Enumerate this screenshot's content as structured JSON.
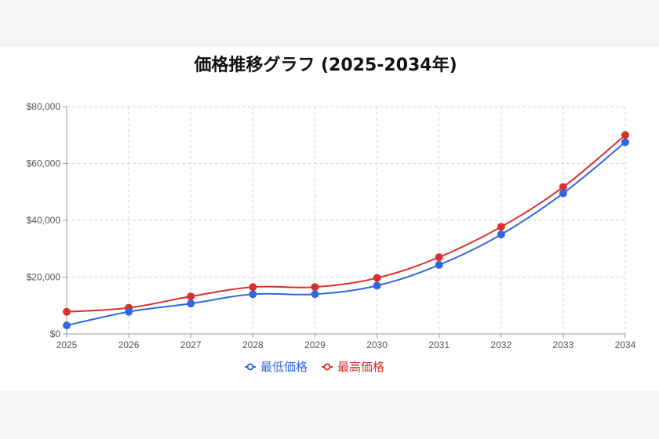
{
  "chart_data": {
    "type": "line",
    "title": "価格推移グラフ (2025-2034年)",
    "xlabel": "",
    "ylabel": "",
    "categories": [
      "2025",
      "2026",
      "2027",
      "2028",
      "2029",
      "2030",
      "2031",
      "2032",
      "2033",
      "2034"
    ],
    "y_ticks": [
      "$0",
      "$20,000",
      "$40,000",
      "$60,000",
      "$80,000"
    ],
    "ylim": [
      0,
      80000
    ],
    "grid": true,
    "legend_position": "bottom",
    "series": [
      {
        "name": "最低価格",
        "color": "#3366e0",
        "values": [
          3000,
          7800,
          10700,
          14000,
          14000,
          17000,
          24300,
          35000,
          49500,
          67500
        ]
      },
      {
        "name": "最高価格",
        "color": "#d9302f",
        "values": [
          7800,
          9200,
          13200,
          16500,
          16500,
          19700,
          27000,
          37700,
          51700,
          70000
        ]
      }
    ]
  }
}
